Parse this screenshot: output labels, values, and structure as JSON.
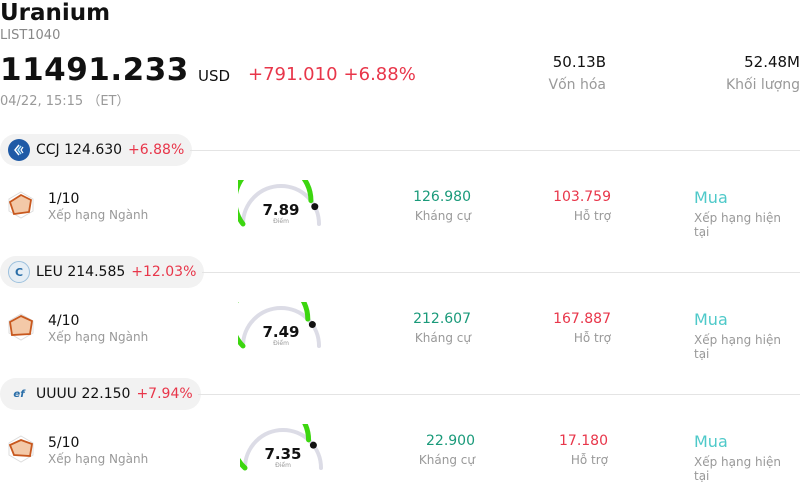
{
  "header": {
    "title": "Uranium",
    "code": "LIST1040",
    "price": "11491.233",
    "currency": "USD",
    "change": "+791.010",
    "change_pct": "+6.88%",
    "time": "04/22, 15:15 （ET）"
  },
  "stats": [
    {
      "value": "50.13B",
      "label": "Vốn hóa"
    },
    {
      "value": "52.48M",
      "label": "Khối lượng"
    }
  ],
  "stocks": [
    {
      "ticker": "CCJ",
      "price": "124.630",
      "pct": "+6.88%",
      "logo_icon": "cameco-logo-icon",
      "rank": "1/10",
      "rank_label": "Xếp hạng Ngành",
      "score": "7.89",
      "score_label": "Điểm",
      "score_fraction": 0.789,
      "resistance": "126.980",
      "resistance_label": "Kháng cự",
      "support": "103.759",
      "support_label": "Hỗ trợ",
      "rating": "Mua",
      "rating_label": "Xếp hạng hiện tại"
    },
    {
      "ticker": "LEU",
      "price": "214.585",
      "pct": "+12.03%",
      "logo_icon": "centrus-logo-icon",
      "rank": "4/10",
      "rank_label": "Xếp hạng Ngành",
      "score": "7.49",
      "score_label": "Điểm",
      "score_fraction": 0.749,
      "resistance": "212.607",
      "resistance_label": "Kháng cự",
      "support": "167.887",
      "support_label": "Hỗ trợ",
      "rating": "Mua",
      "rating_label": "Xếp hạng hiện tại"
    },
    {
      "ticker": "UUUU",
      "price": "22.150",
      "pct": "+7.94%",
      "logo_icon": "energy-fuels-logo-icon",
      "rank": "5/10",
      "rank_label": "Xếp hạng Ngành",
      "score": "7.35",
      "score_label": "Điểm",
      "score_fraction": 0.735,
      "resistance": "22.900",
      "resistance_label": "Kháng cự",
      "support": "17.180",
      "support_label": "Hỗ trợ",
      "rating": "Mua",
      "rating_label": "Xếp hạng hiện tại"
    }
  ],
  "colors": {
    "up": "#e8364a",
    "resistance": "#1a9a7a",
    "rating": "#4ec9c9",
    "gauge_fill": "#3cd60f",
    "gauge_track": "#dcdce6"
  }
}
